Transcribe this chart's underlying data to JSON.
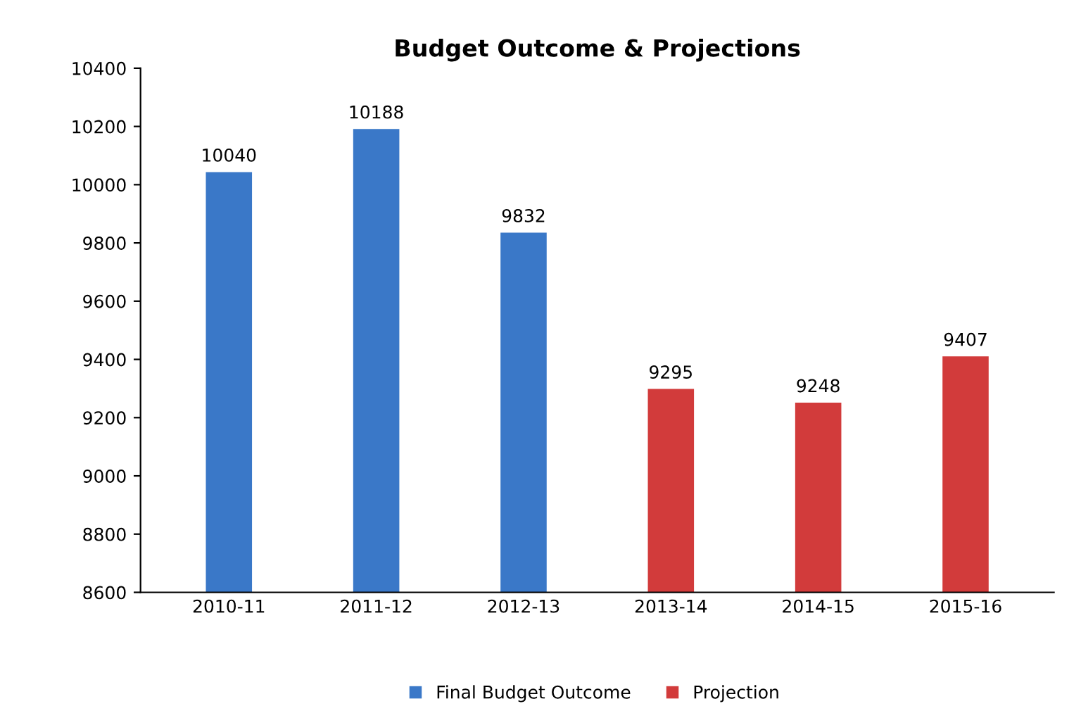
{
  "chart_data": {
    "type": "bar",
    "title": "Budget Outcome & Projections",
    "categories": [
      "2010-11",
      "2011-12",
      "2012-13",
      "2013-14",
      "2014-15",
      "2015-16"
    ],
    "series": [
      {
        "name": "Final Budget Outcome",
        "color": "#3a78c8",
        "values": [
          10040,
          10188,
          9832,
          null,
          null,
          null
        ]
      },
      {
        "name": "Projection",
        "color": "#d23b3b",
        "values": [
          null,
          null,
          null,
          9295,
          9248,
          9407
        ]
      }
    ],
    "ylim": [
      8600,
      10400
    ],
    "yticks": [
      8600,
      8800,
      9000,
      9200,
      9400,
      9600,
      9800,
      10000,
      10200,
      10400
    ],
    "data_labels": true,
    "grid": false,
    "legend": "bottom"
  }
}
